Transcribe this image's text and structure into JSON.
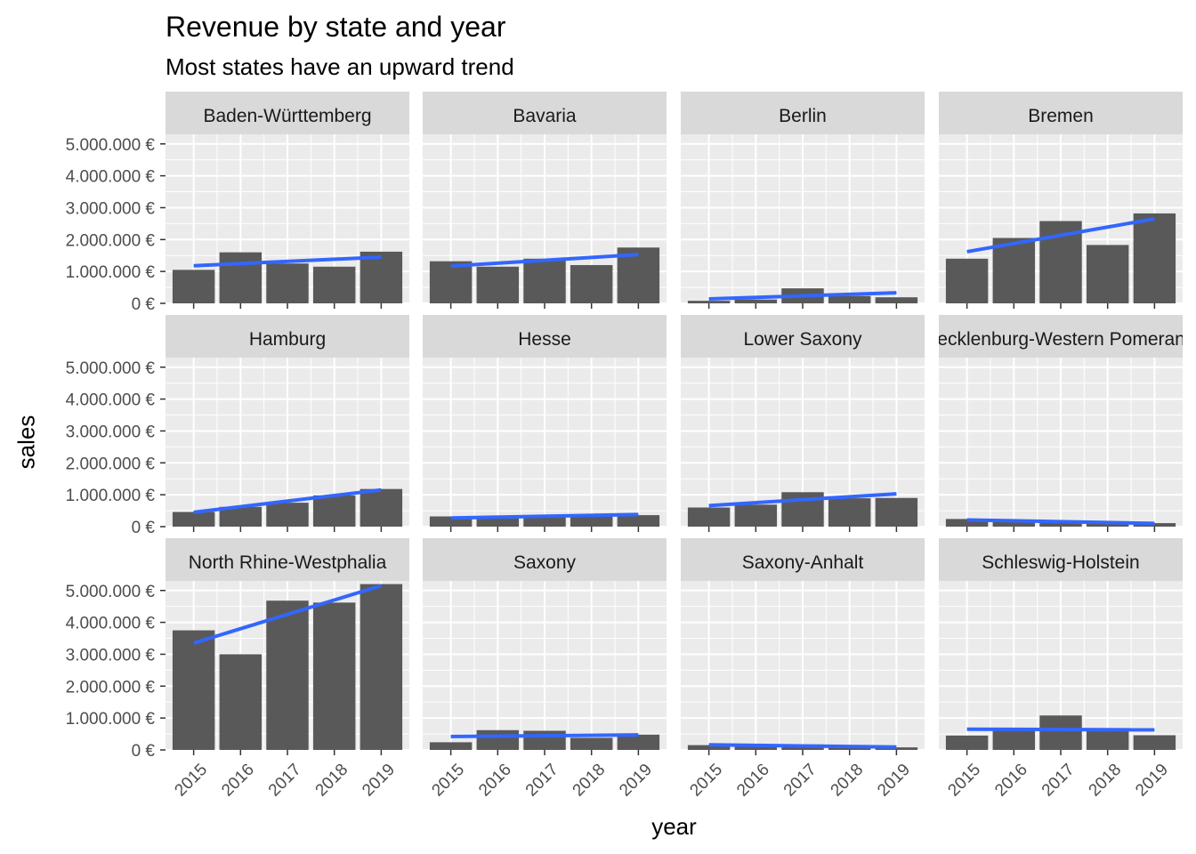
{
  "chart_data": {
    "type": "bar",
    "title": "Revenue by state and year",
    "subtitle": "Most states have an upward trend",
    "xlabel": "year",
    "ylabel": "sales",
    "categories": [
      "2015",
      "2016",
      "2017",
      "2018",
      "2019"
    ],
    "ylim": [
      0,
      5300000
    ],
    "yticks": [
      0,
      1000000,
      2000000,
      3000000,
      4000000,
      5000000
    ],
    "ytick_labels": [
      "0 €",
      "1.000.000 €",
      "2.000.000 €",
      "3.000.000 €",
      "4.000.000 €",
      "5.000.000 €"
    ],
    "layout": "facet-grid-4x3",
    "grid": true,
    "colors": {
      "bar": "#595959",
      "trend": "#3366ff",
      "panel": "#ebebeb",
      "strip": "#d9d9d9",
      "grid": "#ffffff"
    },
    "panels": [
      {
        "label": "Baden-Württemberg",
        "values": [
          1050000,
          1600000,
          1250000,
          1150000,
          1620000
        ],
        "trend": [
          1180000,
          1450000
        ]
      },
      {
        "label": "Bavaria",
        "values": [
          1320000,
          1150000,
          1400000,
          1200000,
          1750000
        ],
        "trend": [
          1170000,
          1530000
        ]
      },
      {
        "label": "Berlin",
        "values": [
          80000,
          120000,
          470000,
          230000,
          190000
        ],
        "trend": [
          140000,
          330000
        ]
      },
      {
        "label": "Bremen",
        "values": [
          1400000,
          2050000,
          2580000,
          1830000,
          2820000
        ],
        "trend": [
          1620000,
          2650000
        ]
      },
      {
        "label": "Hamburg",
        "values": [
          460000,
          620000,
          750000,
          980000,
          1180000
        ],
        "trend": [
          450000,
          1150000
        ]
      },
      {
        "label": "Hesse",
        "values": [
          320000,
          270000,
          330000,
          330000,
          360000
        ],
        "trend": [
          270000,
          380000
        ]
      },
      {
        "label": "Lower Saxony",
        "values": [
          600000,
          690000,
          1080000,
          890000,
          900000
        ],
        "trend": [
          660000,
          1030000
        ]
      },
      {
        "label": "Mecklenburg-Western Pomerania",
        "values": [
          240000,
          200000,
          160000,
          120000,
          110000
        ],
        "trend": [
          210000,
          100000
        ]
      },
      {
        "label": "North Rhine-Westphalia",
        "values": [
          3750000,
          3000000,
          4680000,
          4620000,
          5200000
        ],
        "trend": [
          3350000,
          5150000
        ]
      },
      {
        "label": "Saxony",
        "values": [
          240000,
          620000,
          600000,
          380000,
          480000
        ],
        "trend": [
          420000,
          470000
        ]
      },
      {
        "label": "Saxony-Anhalt",
        "values": [
          150000,
          130000,
          170000,
          150000,
          80000
        ],
        "trend": [
          160000,
          90000
        ]
      },
      {
        "label": "Schleswig-Holstein",
        "values": [
          450000,
          640000,
          1080000,
          620000,
          460000
        ],
        "trend": [
          650000,
          630000
        ]
      }
    ]
  }
}
